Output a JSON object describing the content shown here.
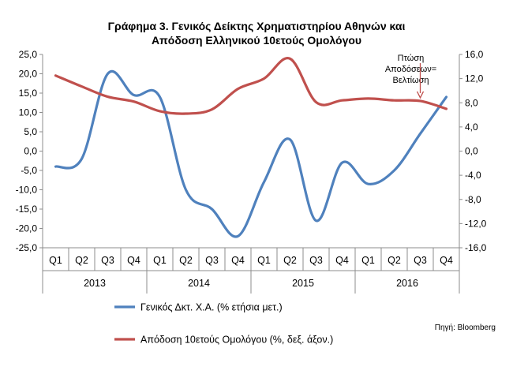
{
  "chart_data": {
    "type": "line",
    "title_line1": "Γράφημα 3. Γενικός Δείκτης Χρηματιστηρίου Αθηνών και",
    "title_line2": "Απόδοση  Ελληνικού 10ετούς Ομολόγου",
    "categories": [
      "Q1",
      "Q2",
      "Q3",
      "Q4",
      "Q1",
      "Q2",
      "Q3",
      "Q4",
      "Q1",
      "Q2",
      "Q3",
      "Q4",
      "Q1",
      "Q2",
      "Q3",
      "Q4"
    ],
    "years": [
      "2013",
      "2014",
      "2015",
      "2016"
    ],
    "y_left": {
      "ylim": [
        -25,
        25
      ],
      "ticks": [
        "25,0",
        "20,0",
        "15,0",
        "10,0",
        "5,0",
        "0,0",
        "-5,0",
        "-10,0",
        "-15,0",
        "-20,0",
        "-25,0"
      ]
    },
    "y_right": {
      "ylim": [
        -16,
        16
      ],
      "ticks": [
        "16,0",
        "12,0",
        "8,0",
        "4,0",
        "0,0",
        "-4,0",
        "-8,0",
        "-12,0",
        "-16,0"
      ]
    },
    "series": [
      {
        "name": "Γενικός Δκτ. Χ.Α. (% ετήσια μετ.)",
        "axis": "left",
        "color": "#4f81bd",
        "values": [
          -4,
          -2,
          20,
          14.5,
          14,
          -10,
          -15,
          -22,
          -8,
          3,
          -18,
          -3,
          -8.5,
          -5,
          4.5,
          14
        ]
      },
      {
        "name": "Απόδοση 10ετούς Ομολόγου (%, δεξ. άξον.)",
        "axis": "right",
        "color": "#c0504d",
        "values": [
          12.5,
          10.7,
          9,
          8.2,
          6.6,
          6.2,
          6.9,
          10.3,
          12,
          15.3,
          8.1,
          8.4,
          8.7,
          8.4,
          8.3,
          7
        ]
      }
    ],
    "annotation": {
      "lines": [
        "Πτώση",
        "Αποδόσεων=",
        "Βελτίωση"
      ],
      "arrow_at_index": 14
    },
    "source": "Πηγή: Bloomberg",
    "grid": false
  }
}
